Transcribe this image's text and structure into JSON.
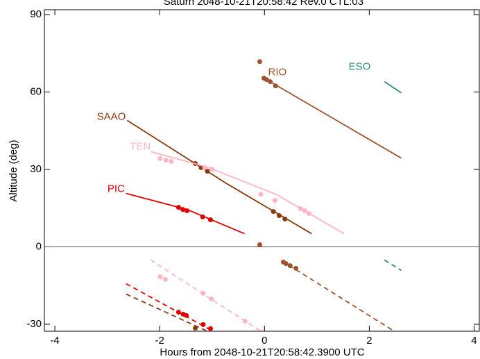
{
  "chart_data": {
    "type": "line",
    "title": "Saturn 2048-10-21T20:58:42  Rev.0  CTL:03",
    "xlabel": "Hours from 2048-10-21T20:58:42.3900 UTC",
    "ylabel": "Altitude (deg)",
    "xlim": [
      -4.2,
      4.1
    ],
    "ylim": [
      -32.7,
      91.9
    ],
    "xticks": [
      -4,
      -2,
      0,
      2,
      4
    ],
    "yticks": [
      -30,
      0,
      30,
      60,
      90
    ],
    "zero_line": true,
    "series": [
      {
        "name": "RIO",
        "color": "#a0522d",
        "x": [
          -0.01,
          2.61
        ],
        "values": [
          65.4,
          34.4
        ],
        "dots_x": [
          -0.01,
          0.04,
          0.11,
          0.21
        ],
        "dots_y": [
          65.4,
          64.8,
          64.0,
          62.4
        ],
        "below_x": [
          0.33,
          2.5
        ],
        "below_values": [
          -5.4,
          -33.0
        ],
        "below_dots_x": [
          0.36,
          0.41,
          0.49,
          0.6
        ],
        "below_dots_y": [
          -5.9,
          -6.5,
          -7.3,
          -8.3
        ]
      },
      {
        "name": "ESO",
        "color": "#2e8b7a",
        "x": [
          2.29,
          2.61
        ],
        "values": [
          64.0,
          59.7
        ],
        "dots_x": [],
        "dots_y": [],
        "below_x": [
          2.29,
          2.61
        ],
        "below_values": [
          -5.1,
          -9.1
        ],
        "below_dots_x": [],
        "below_dots_y": []
      },
      {
        "name": "SAAO",
        "color": "#8b3a0f",
        "x": [
          -2.62,
          -0.72,
          0.9
        ],
        "values": [
          49.0,
          24.5,
          5.1
        ],
        "dots_x": [
          -1.32,
          -1.21,
          -1.09,
          0.17,
          0.28,
          0.39
        ],
        "dots_y": [
          32.3,
          30.7,
          29.3,
          13.7,
          12.1,
          10.8
        ],
        "below_x": [
          -2.64,
          -1.09
        ],
        "below_values": [
          -18.3,
          -32.7
        ],
        "below_dots_x": [
          -1.32
        ],
        "below_dots_y": [
          -31.5
        ]
      },
      {
        "name": "TEN",
        "color": "#ffb6c1",
        "x": [
          -2.17,
          -1.09,
          0.24,
          1.52
        ],
        "values": [
          36.9,
          30.9,
          20.2,
          5.1
        ],
        "dots_x": [
          -1.99,
          -1.88,
          -1.78,
          -1.14,
          -1.0,
          -0.07,
          0.2,
          0.69,
          0.77,
          0.85
        ],
        "dots_y": [
          34.2,
          33.6,
          33.1,
          30.7,
          30.1,
          20.4,
          18.0,
          14.8,
          14.0,
          12.9
        ],
        "below_x": [
          -2.17,
          -0.07
        ],
        "below_values": [
          -5.1,
          -32.7
        ],
        "below_dots_x": [
          -1.99,
          -1.89,
          -1.17,
          -1.01,
          -0.37
        ],
        "below_dots_y": [
          -11.6,
          -12.6,
          -18.0,
          -20.2,
          -28.8
        ]
      },
      {
        "name": "PIC",
        "color": "#e00000",
        "x": [
          -2.64,
          -1.48,
          -0.38
        ],
        "values": [
          20.7,
          14.5,
          5.1
        ],
        "dots_x": [
          -1.64,
          -1.56,
          -1.48,
          -1.18,
          -1.03
        ],
        "dots_y": [
          15.3,
          14.5,
          14.0,
          11.6,
          10.5
        ],
        "below_x": [
          -2.64,
          -0.98
        ],
        "below_values": [
          -14.3,
          -32.7
        ],
        "below_dots_x": [
          -1.64,
          -1.55,
          -1.49,
          -1.17,
          -1.03
        ],
        "below_dots_y": [
          -25.3,
          -26.1,
          -26.6,
          -30.1,
          -31.7
        ]
      }
    ],
    "points": {
      "color": "#a0522d",
      "x": [
        -0.09,
        -0.09
      ],
      "values": [
        71.8,
        0.8
      ]
    }
  }
}
